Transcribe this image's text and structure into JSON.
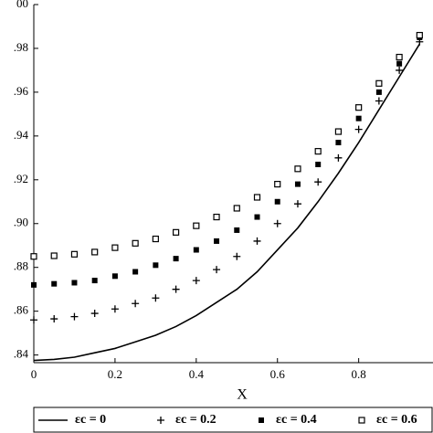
{
  "chart_data": {
    "type": "line",
    "xlabel": "X",
    "x": [
      0,
      0.05,
      0.1,
      0.15,
      0.2,
      0.25,
      0.3,
      0.35,
      0.4,
      0.45,
      0.5,
      0.55,
      0.6,
      0.65,
      0.7,
      0.75,
      0.8,
      0.85,
      0.9,
      0.95
    ],
    "series": [
      {
        "name": "εc = 0",
        "color": "#000000",
        "marker": "line",
        "values": [
          0.8375,
          0.838,
          0.839,
          0.841,
          0.843,
          0.846,
          0.849,
          0.853,
          0.858,
          0.864,
          0.87,
          0.878,
          0.888,
          0.898,
          0.91,
          0.923,
          0.937,
          0.952,
          0.967,
          0.982
        ]
      },
      {
        "name": "εc = 0.2",
        "color": "#000000",
        "marker": "plus",
        "values": [
          0.856,
          0.8565,
          0.8575,
          0.859,
          0.861,
          0.8635,
          0.866,
          0.87,
          0.874,
          0.879,
          0.885,
          0.892,
          0.9,
          0.909,
          0.919,
          0.93,
          0.943,
          0.956,
          0.97,
          0.983
        ]
      },
      {
        "name": "εc = 0.4",
        "color": "#000000",
        "marker": "filled-square",
        "values": [
          0.872,
          0.8725,
          0.873,
          0.874,
          0.876,
          0.878,
          0.881,
          0.884,
          0.888,
          0.892,
          0.897,
          0.903,
          0.91,
          0.918,
          0.927,
          0.937,
          0.948,
          0.96,
          0.973,
          0.985
        ]
      },
      {
        "name": "εc = 0.6",
        "color": "#000000",
        "marker": "open-square",
        "values": [
          0.885,
          0.8853,
          0.886,
          0.887,
          0.889,
          0.891,
          0.893,
          0.896,
          0.899,
          0.903,
          0.907,
          0.912,
          0.918,
          0.925,
          0.933,
          0.942,
          0.953,
          0.964,
          0.976,
          0.986
        ]
      }
    ],
    "xlim": [
      0,
      0.983
    ],
    "xticks": [
      0,
      0.2,
      0.4,
      0.6,
      0.8
    ],
    "ylim": [
      0.8365,
      1.0
    ],
    "yticks": [
      {
        "value": 0.84,
        "label": ".84"
      },
      {
        "value": 0.86,
        "label": ".86"
      },
      {
        "value": 0.88,
        "label": ".88"
      },
      {
        "value": 0.9,
        "label": ".90"
      },
      {
        "value": 0.92,
        "label": ".92"
      },
      {
        "value": 0.94,
        "label": ".94"
      },
      {
        "value": 0.96,
        "label": ".96"
      },
      {
        "value": 0.98,
        "label": ".98"
      },
      {
        "value": 1.0,
        "label": "00"
      }
    ]
  }
}
